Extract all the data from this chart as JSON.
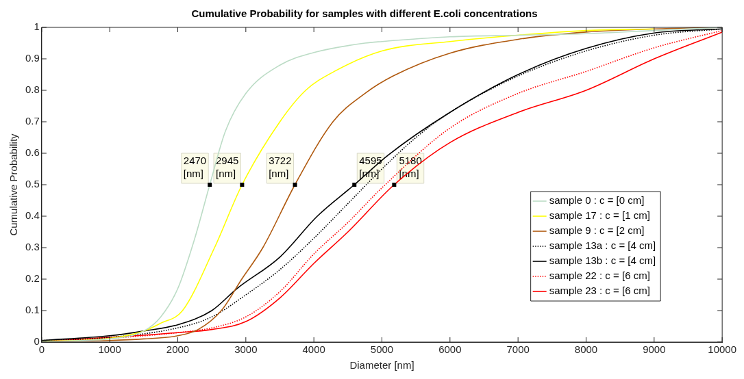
{
  "chart_data": {
    "type": "line",
    "title": "Cumulative Probability for samples with different E.coli concentrations",
    "xlabel": "Diameter [nm]",
    "ylabel": "Cumulative Probability",
    "xlim": [
      0,
      10000
    ],
    "xticks": [
      0,
      1000,
      2000,
      3000,
      4000,
      5000,
      6000,
      7000,
      8000,
      9000,
      10000
    ],
    "ylim": [
      0,
      1
    ],
    "yticks": [
      0,
      0.1,
      0.2,
      0.3,
      0.4,
      0.5,
      0.6,
      0.7,
      0.8,
      0.9,
      1
    ],
    "grid": false,
    "legend": "right",
    "marker": "none",
    "series": [
      {
        "name": "sample 0 : c = [0 cm]",
        "color": "#bcdcc6",
        "line_style": "solid",
        "x": [
          0,
          1000,
          1500,
          1750,
          2000,
          2250,
          2470,
          2700,
          3000,
          3500,
          4000,
          4750,
          5000,
          6000,
          7000,
          8000,
          9000,
          10000
        ],
        "values": [
          0.002,
          0.01,
          0.035,
          0.08,
          0.17,
          0.33,
          0.5,
          0.67,
          0.79,
          0.88,
          0.92,
          0.95,
          0.955,
          0.97,
          0.975,
          0.98,
          0.99,
          1
        ]
      },
      {
        "name": "sample 17 : c = [1 cm]",
        "color": "#ffff00",
        "line_style": "solid",
        "x": [
          0,
          1000,
          1500,
          1750,
          2070,
          2540,
          2945,
          3500,
          3880,
          4300,
          5000,
          6000,
          7000,
          8000,
          9000
        ],
        "values": [
          0.002,
          0.012,
          0.035,
          0.06,
          0.1,
          0.3,
          0.5,
          0.7,
          0.8,
          0.86,
          0.925,
          0.955,
          0.975,
          0.99,
          0.995
        ]
      },
      {
        "name": "sample 9 : c = [2 cm]",
        "color": "#b05a10",
        "line_style": "solid",
        "x": [
          0,
          1000,
          1500,
          2000,
          2300,
          2640,
          2940,
          3250,
          3722,
          4280,
          4750,
          5160,
          6000,
          7000,
          8000,
          9000,
          10000
        ],
        "values": [
          0.002,
          0.005,
          0.01,
          0.02,
          0.04,
          0.1,
          0.2,
          0.3,
          0.5,
          0.7,
          0.79,
          0.845,
          0.918,
          0.962,
          0.985,
          0.995,
          1
        ]
      },
      {
        "name": "sample 13a : c = [4 cm]",
        "color": "#000000",
        "line_style": "dotted",
        "x": [
          0,
          1000,
          2000,
          2500,
          3000,
          3500,
          4000,
          4500,
          5000,
          5500,
          6000,
          7000,
          8000,
          9000,
          10000
        ],
        "values": [
          0.005,
          0.015,
          0.045,
          0.08,
          0.15,
          0.23,
          0.33,
          0.44,
          0.55,
          0.65,
          0.73,
          0.845,
          0.925,
          0.975,
          0.995
        ]
      },
      {
        "name": "sample 13b : c = [4 cm]",
        "color": "#000000",
        "line_style": "solid",
        "x": [
          0,
          1000,
          1500,
          2000,
          2500,
          2870,
          3500,
          4050,
          4595,
          5090,
          6000,
          7000,
          8000,
          9000,
          10000
        ],
        "values": [
          0.005,
          0.02,
          0.035,
          0.055,
          0.1,
          0.17,
          0.27,
          0.4,
          0.5,
          0.594,
          0.73,
          0.85,
          0.933,
          0.982,
          0.995
        ]
      },
      {
        "name": "sample 22 : c = [6 cm]",
        "color": "#ff0000",
        "line_style": "dotted",
        "x": [
          0,
          1000,
          2000,
          2500,
          3000,
          3500,
          4000,
          4500,
          5000,
          6000,
          7000,
          8000,
          9000,
          10000
        ],
        "values": [
          0.002,
          0.012,
          0.03,
          0.045,
          0.08,
          0.16,
          0.28,
          0.38,
          0.49,
          0.68,
          0.79,
          0.86,
          0.935,
          0.99
        ]
      },
      {
        "name": "sample 23 : c = [6 cm]",
        "color": "#ff0000",
        "line_style": "solid",
        "x": [
          0,
          1000,
          2000,
          2500,
          3000,
          3500,
          4000,
          4500,
          5180,
          6000,
          7000,
          8000,
          9000,
          10000
        ],
        "values": [
          0.002,
          0.015,
          0.03,
          0.04,
          0.065,
          0.14,
          0.25,
          0.35,
          0.5,
          0.634,
          0.73,
          0.8,
          0.9,
          0.985
        ]
      }
    ],
    "annotations": [
      {
        "text": "2470 [nm]",
        "x": 2470,
        "y": 0.5
      },
      {
        "text": "2945 [nm]",
        "x": 2945,
        "y": 0.5
      },
      {
        "text": "3722 [nm]",
        "x": 3722,
        "y": 0.5
      },
      {
        "text": "4595 [nm]",
        "x": 4595,
        "y": 0.5
      },
      {
        "text": "5180 [nm]",
        "x": 5180,
        "y": 0.5
      }
    ]
  }
}
